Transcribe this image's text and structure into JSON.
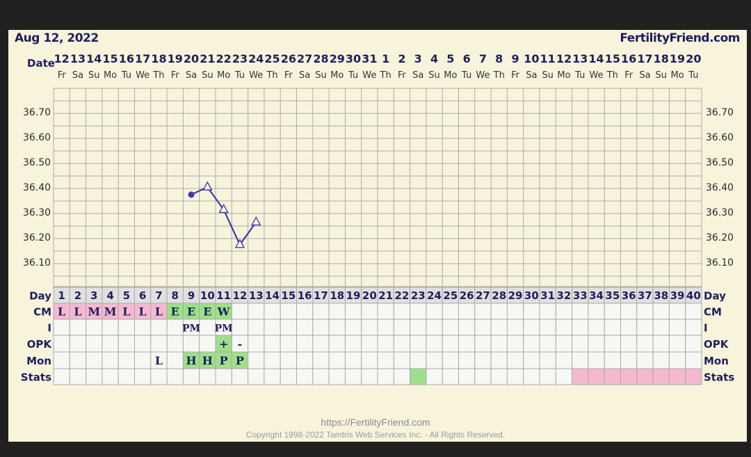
{
  "header": {
    "date": "Aug 12, 2022",
    "brand": "FertilityFriend.com"
  },
  "footer": {
    "url": "https://FertilityFriend.com",
    "copyright": "Copyright 1998-2022 Tamtris Web Services Inc. - All Rights Reserved."
  },
  "row_labels": {
    "date": "Date",
    "day": "Day",
    "cm": "CM",
    "i": "I",
    "opk": "OPK",
    "mon": "Mon",
    "stats": "Stats"
  },
  "colors": {
    "line": "#3f3aa8",
    "text": "#1e1e5c",
    "grid": "#aaaaaa",
    "pink": "#f5b9cf",
    "green": "#9ee08a",
    "gray_cell": "#e0e0e0"
  },
  "chart_data": {
    "type": "line",
    "title": "",
    "ylabel": "",
    "xlabel": "",
    "ylim": [
      36.0,
      36.8
    ],
    "yticks": [
      "36.70",
      "36.60",
      "36.50",
      "36.40",
      "36.30",
      "36.20",
      "36.10"
    ],
    "dates": [
      "12",
      "13",
      "14",
      "15",
      "16",
      "17",
      "18",
      "19",
      "20",
      "21",
      "22",
      "23",
      "24",
      "25",
      "26",
      "27",
      "28",
      "29",
      "30",
      "31",
      "1",
      "2",
      "3",
      "4",
      "5",
      "6",
      "7",
      "8",
      "9",
      "10",
      "11",
      "12",
      "13",
      "14",
      "15",
      "16",
      "17",
      "18",
      "19",
      "20"
    ],
    "weekdays": [
      "Fr",
      "Sa",
      "Su",
      "Mo",
      "Tu",
      "We",
      "Th",
      "Fr",
      "Sa",
      "Su",
      "Mo",
      "Tu",
      "We",
      "Th",
      "Fr",
      "Sa",
      "Su",
      "Mo",
      "Tu",
      "We",
      "Th",
      "Fr",
      "Sa",
      "Su",
      "Mo",
      "Tu",
      "We",
      "Th",
      "Fr",
      "Sa",
      "Su",
      "Mo",
      "Tu",
      "We",
      "Th",
      "Fr",
      "Sa",
      "Su",
      "Mo",
      "Tu"
    ],
    "cycle_days": [
      "1",
      "2",
      "3",
      "4",
      "5",
      "6",
      "7",
      "8",
      "9",
      "10",
      "11",
      "12",
      "13",
      "14",
      "15",
      "16",
      "17",
      "18",
      "19",
      "20",
      "21",
      "22",
      "23",
      "24",
      "25",
      "26",
      "27",
      "28",
      "29",
      "30",
      "31",
      "32",
      "33",
      "34",
      "35",
      "36",
      "37",
      "38",
      "39",
      "40"
    ],
    "series": [
      {
        "points": [
          {
            "day": 9,
            "temp": 36.37,
            "marker": "circle"
          },
          {
            "day": 10,
            "temp": 36.4,
            "marker": "triangle"
          },
          {
            "day": 11,
            "temp": 36.31,
            "marker": "triangle"
          },
          {
            "day": 12,
            "temp": 36.17,
            "marker": "triangle"
          },
          {
            "day": 13,
            "temp": 36.26,
            "marker": "triangle"
          }
        ]
      }
    ],
    "cm": [
      {
        "day": 1,
        "value": "L",
        "color": "pink"
      },
      {
        "day": 2,
        "value": "L",
        "color": "pink"
      },
      {
        "day": 3,
        "value": "M",
        "color": "pink"
      },
      {
        "day": 4,
        "value": "M",
        "color": "pink"
      },
      {
        "day": 5,
        "value": "L",
        "color": "pink"
      },
      {
        "day": 6,
        "value": "L",
        "color": "pink"
      },
      {
        "day": 7,
        "value": "L",
        "color": "pink"
      },
      {
        "day": 8,
        "value": "E",
        "color": "green"
      },
      {
        "day": 9,
        "value": "E",
        "color": "green"
      },
      {
        "day": 10,
        "value": "E",
        "color": "green"
      },
      {
        "day": 11,
        "value": "W",
        "color": "green"
      }
    ],
    "intercourse": [
      {
        "day": 9,
        "value": "PM"
      },
      {
        "day": 11,
        "value": "PM"
      }
    ],
    "opk": [
      {
        "day": 11,
        "value": "+",
        "color": "green"
      },
      {
        "day": 12,
        "value": "-",
        "color": ""
      }
    ],
    "monitor": [
      {
        "day": 7,
        "value": "L",
        "color": ""
      },
      {
        "day": 9,
        "value": "H",
        "color": "green"
      },
      {
        "day": 10,
        "value": "H",
        "color": "green"
      },
      {
        "day": 11,
        "value": "P",
        "color": "green"
      },
      {
        "day": 12,
        "value": "P",
        "color": "green"
      }
    ],
    "stats": [
      {
        "day": 23,
        "color": "green"
      },
      {
        "day": 33,
        "color": "pink"
      },
      {
        "day": 34,
        "color": "pink"
      },
      {
        "day": 35,
        "color": "pink"
      },
      {
        "day": 36,
        "color": "pink"
      },
      {
        "day": 37,
        "color": "pink"
      },
      {
        "day": 38,
        "color": "pink"
      },
      {
        "day": 39,
        "color": "pink"
      },
      {
        "day": 40,
        "color": "pink"
      }
    ]
  }
}
